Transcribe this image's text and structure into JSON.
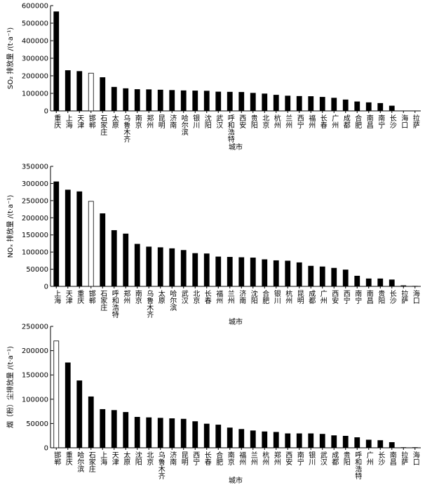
{
  "chart_data": [
    {
      "type": "bar",
      "y_label": "SO₂ 排放量 /(t·a⁻¹)",
      "x_label": "城市",
      "categories": [
        "重庆",
        "上海",
        "天津",
        "邯郸",
        "石家庄",
        "太原",
        "乌鲁木齐",
        "南京",
        "郑州",
        "昆明",
        "济南",
        "哈尔滨",
        "银川",
        "沈阳",
        "武汉",
        "呼和浩特",
        "西安",
        "贵阳",
        "北京",
        "杭州",
        "兰州",
        "西宁",
        "福州",
        "长春",
        "广州",
        "成都",
        "合肥",
        "南昌",
        "南宁",
        "长沙",
        "海口",
        "拉萨"
      ],
      "values": [
        565000,
        230000,
        225000,
        215000,
        190000,
        135000,
        127000,
        122000,
        121000,
        119000,
        117000,
        115000,
        114000,
        113000,
        108000,
        107000,
        106000,
        101000,
        97000,
        90000,
        85000,
        83000,
        82000,
        78000,
        73000,
        63000,
        52000,
        47000,
        43000,
        28000,
        0,
        0
      ],
      "colors": [
        "#000",
        "#000",
        "#000",
        "#fff",
        "#000",
        "#000",
        "#000",
        "#000",
        "#000",
        "#000",
        "#000",
        "#000",
        "#000",
        "#000",
        "#000",
        "#000",
        "#000",
        "#000",
        "#000",
        "#000",
        "#000",
        "#000",
        "#000",
        "#000",
        "#000",
        "#000",
        "#000",
        "#000",
        "#000",
        "#000",
        "#000",
        "#000"
      ],
      "edge_color": "#000",
      "ylim": [
        0,
        600000
      ],
      "yticks": [
        0,
        100000,
        200000,
        300000,
        400000,
        500000,
        600000
      ]
    },
    {
      "type": "bar",
      "y_label": "NOₓ 排放量 /(t·a⁻¹)",
      "x_label": "城市",
      "categories": [
        "上海",
        "天津",
        "重庆",
        "邯郸",
        "石家庄",
        "呼和浩特",
        "郑州",
        "南京",
        "乌鲁木齐",
        "太原",
        "哈尔滨",
        "武汉",
        "北京",
        "长春",
        "福州",
        "兰州",
        "济南",
        "沈阳",
        "合肥",
        "银川",
        "杭州",
        "昆明",
        "成都",
        "广州",
        "西安",
        "西宁",
        "南宁",
        "南昌",
        "贵阳",
        "长沙",
        "拉萨",
        "海口"
      ],
      "values": [
        305000,
        281000,
        276000,
        248000,
        212000,
        163000,
        153000,
        123000,
        115000,
        113000,
        110000,
        105000,
        96000,
        95000,
        86000,
        85000,
        84000,
        83000,
        78000,
        75000,
        74000,
        69000,
        59000,
        57000,
        53000,
        48000,
        30000,
        22000,
        22000,
        19000,
        2000,
        500
      ],
      "colors": [
        "#000",
        "#000",
        "#000",
        "#fff",
        "#000",
        "#000",
        "#000",
        "#000",
        "#000",
        "#000",
        "#000",
        "#000",
        "#000",
        "#000",
        "#000",
        "#000",
        "#000",
        "#000",
        "#000",
        "#000",
        "#000",
        "#000",
        "#000",
        "#000",
        "#000",
        "#000",
        "#000",
        "#000",
        "#000",
        "#000",
        "#000",
        "#000"
      ],
      "edge_color": "#000",
      "ylim": [
        0,
        350000
      ],
      "yticks": [
        0,
        50000,
        100000,
        150000,
        200000,
        250000,
        300000,
        350000
      ]
    },
    {
      "type": "bar",
      "y_label": "烟（粉）尘排放量 /(t·a⁻¹)",
      "x_label": "城市",
      "categories": [
        "邯郸",
        "重庆",
        "哈尔滨",
        "石家庄",
        "上海",
        "天津",
        "太原",
        "沈阳",
        "北京",
        "乌鲁木齐",
        "济南",
        "昆明",
        "西宁",
        "长春",
        "合肥",
        "南京",
        "福州",
        "兰州",
        "杭州",
        "郑州",
        "西安",
        "南宁",
        "银川",
        "武汉",
        "成都",
        "贵阳",
        "呼和浩特",
        "广州",
        "长沙",
        "南昌",
        "拉萨",
        "海口"
      ],
      "values": [
        220000,
        175000,
        138000,
        105000,
        79000,
        77000,
        73000,
        63000,
        62000,
        61000,
        60000,
        59000,
        54000,
        49000,
        47000,
        41000,
        38000,
        35000,
        33000,
        32000,
        29000,
        29000,
        29000,
        28000,
        25000,
        24000,
        21000,
        16000,
        15000,
        11000,
        500,
        500
      ],
      "colors": [
        "#fff",
        "#000",
        "#000",
        "#000",
        "#000",
        "#000",
        "#000",
        "#000",
        "#000",
        "#000",
        "#000",
        "#000",
        "#000",
        "#000",
        "#000",
        "#000",
        "#000",
        "#000",
        "#000",
        "#000",
        "#000",
        "#000",
        "#000",
        "#000",
        "#000",
        "#000",
        "#000",
        "#000",
        "#000",
        "#000",
        "#000",
        "#000"
      ],
      "edge_color": "#000",
      "ylim": [
        0,
        250000
      ],
      "yticks": [
        0,
        50000,
        100000,
        150000,
        200000,
        250000
      ]
    }
  ]
}
